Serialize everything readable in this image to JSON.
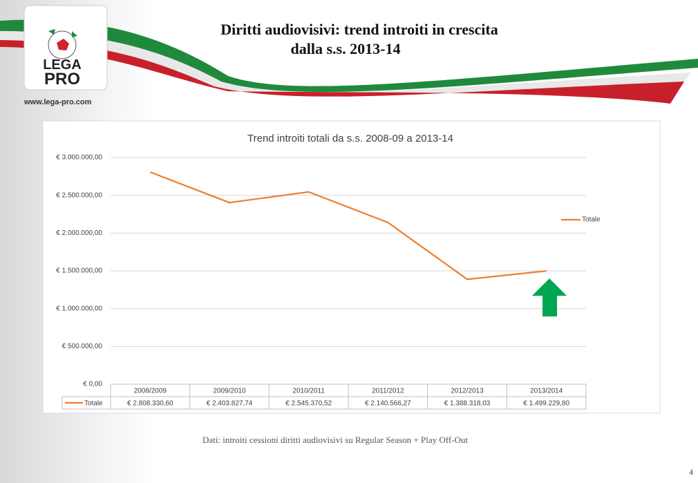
{
  "header": {
    "title_line1": "Diritti audiovisivi: trend introiti in crescita",
    "title_line2": "dalla s.s. 2013-14",
    "logo_top": "LEGA",
    "logo_bottom": "PRO",
    "url": "www.lega-pro.com"
  },
  "chart_data": {
    "type": "line",
    "title": "Trend introiti totali da s.s. 2008-09 a 2013-14",
    "categories": [
      "2008/2009",
      "2009/2010",
      "2010/2011",
      "2011/2012",
      "2012/2013",
      "2013/2014"
    ],
    "series": [
      {
        "name": "Totale",
        "color": "#ed7d31",
        "values": [
          2808330.6,
          2403827.74,
          2545370.52,
          2140566.27,
          1388318.03,
          1499229.8
        ],
        "value_labels": [
          "€ 2.808.330,60",
          "€ 2.403.827,74",
          "€ 2.545.370,52",
          "€ 2.140.566,27",
          "€ 1.388.318,03",
          "€ 1.499.229,80"
        ]
      }
    ],
    "ylim": [
      0,
      3000000
    ],
    "yticks": [
      {
        "value": 0,
        "label": "€ 0,00"
      },
      {
        "value": 500000,
        "label": "€ 500.000,00"
      },
      {
        "value": 1000000,
        "label": "€ 1.000.000,00"
      },
      {
        "value": 1500000,
        "label": "€ 1.500.000,00"
      },
      {
        "value": 2000000,
        "label": "€ 2.000.000,00"
      },
      {
        "value": 2500000,
        "label": "€ 2.500.000,00"
      },
      {
        "value": 3000000,
        "label": "€ 3.000.000,00"
      }
    ],
    "grid": true,
    "legend": "right",
    "data_table": true
  },
  "footer": {
    "note": "Dati: introiti cessioni diritti audiovisivi su Regular Season + Play Off-Out",
    "page": "4"
  }
}
